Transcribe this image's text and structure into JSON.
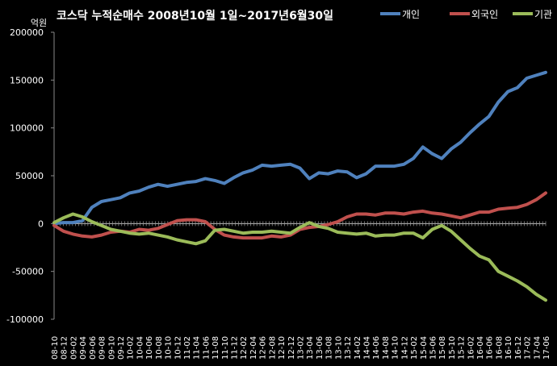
{
  "chart_data": {
    "type": "line",
    "title": "코스닥 누적순매수 2008년10월 1일~2017년6월30일",
    "ylabel": "억원",
    "xlabel": "",
    "ylim": [
      -100000,
      200000
    ],
    "y_ticks": [
      200000,
      150000,
      100000,
      50000,
      0,
      -50000,
      -100000
    ],
    "grid": false,
    "legend_position": "top-right",
    "categories": [
      "08-10",
      "08-12",
      "09-02",
      "09-04",
      "09-06",
      "09-08",
      "09-10",
      "09-12",
      "10-02",
      "10-04",
      "10-06",
      "10-08",
      "10-10",
      "10-12",
      "11-02",
      "11-04",
      "11-06",
      "11-08",
      "11-10",
      "11-12",
      "12-02",
      "12-04",
      "12-06",
      "12-08",
      "12-10",
      "12-12",
      "13-02",
      "13-04",
      "13-06",
      "13-08",
      "13-10",
      "13-12",
      "14-02",
      "14-04",
      "14-06",
      "14-08",
      "14-10",
      "14-12",
      "15-02",
      "15-04",
      "15-06",
      "15-08",
      "15-10",
      "15-12",
      "16-02",
      "16-04",
      "16-06",
      "16-08",
      "16-10",
      "16-12",
      "17-02",
      "17-04",
      "17-06"
    ],
    "series": [
      {
        "name": "개인",
        "color": "#4F81BD",
        "values": [
          0,
          1000,
          1000,
          3000,
          17000,
          23000,
          25000,
          27000,
          32000,
          34000,
          38000,
          41000,
          39000,
          41000,
          43000,
          44000,
          47000,
          45000,
          42000,
          48000,
          53000,
          56000,
          61000,
          60000,
          61000,
          62000,
          58000,
          47000,
          53000,
          52000,
          55000,
          54000,
          48000,
          52000,
          60000,
          60000,
          60000,
          62000,
          68000,
          80000,
          73000,
          68000,
          78000,
          85000,
          95000,
          104000,
          112000,
          127000,
          138000,
          142000,
          152000,
          155000,
          158000
        ]
      },
      {
        "name": "외국인",
        "color": "#C0504D",
        "values": [
          -2000,
          -8000,
          -11000,
          -13000,
          -14000,
          -12000,
          -9000,
          -8000,
          -9000,
          -6000,
          -7000,
          -5000,
          -1000,
          3000,
          4000,
          4000,
          2000,
          -6000,
          -12000,
          -14000,
          -15000,
          -15000,
          -15000,
          -13000,
          -14000,
          -12000,
          -6000,
          -4000,
          -3000,
          -1000,
          2000,
          7000,
          10000,
          10000,
          9000,
          11000,
          11000,
          10000,
          12000,
          13000,
          11000,
          10000,
          8000,
          6000,
          9000,
          12000,
          12000,
          15000,
          16000,
          17000,
          20000,
          25000,
          32000
        ]
      },
      {
        "name": "기관",
        "color": "#9BBB59",
        "values": [
          1000,
          6000,
          10000,
          7000,
          2000,
          -2000,
          -6000,
          -8000,
          -10000,
          -11000,
          -10000,
          -12000,
          -14000,
          -17000,
          -19000,
          -21000,
          -18000,
          -7000,
          -6000,
          -8000,
          -10000,
          -9000,
          -9000,
          -8000,
          -9000,
          -10000,
          -4000,
          1000,
          -3000,
          -5000,
          -9000,
          -10000,
          -11000,
          -10000,
          -13000,
          -12000,
          -12000,
          -10000,
          -10000,
          -15000,
          -6000,
          -2000,
          -8000,
          -17000,
          -26000,
          -34000,
          -38000,
          -50000,
          -55000,
          -60000,
          -66000,
          -74000,
          -80000
        ]
      }
    ]
  }
}
